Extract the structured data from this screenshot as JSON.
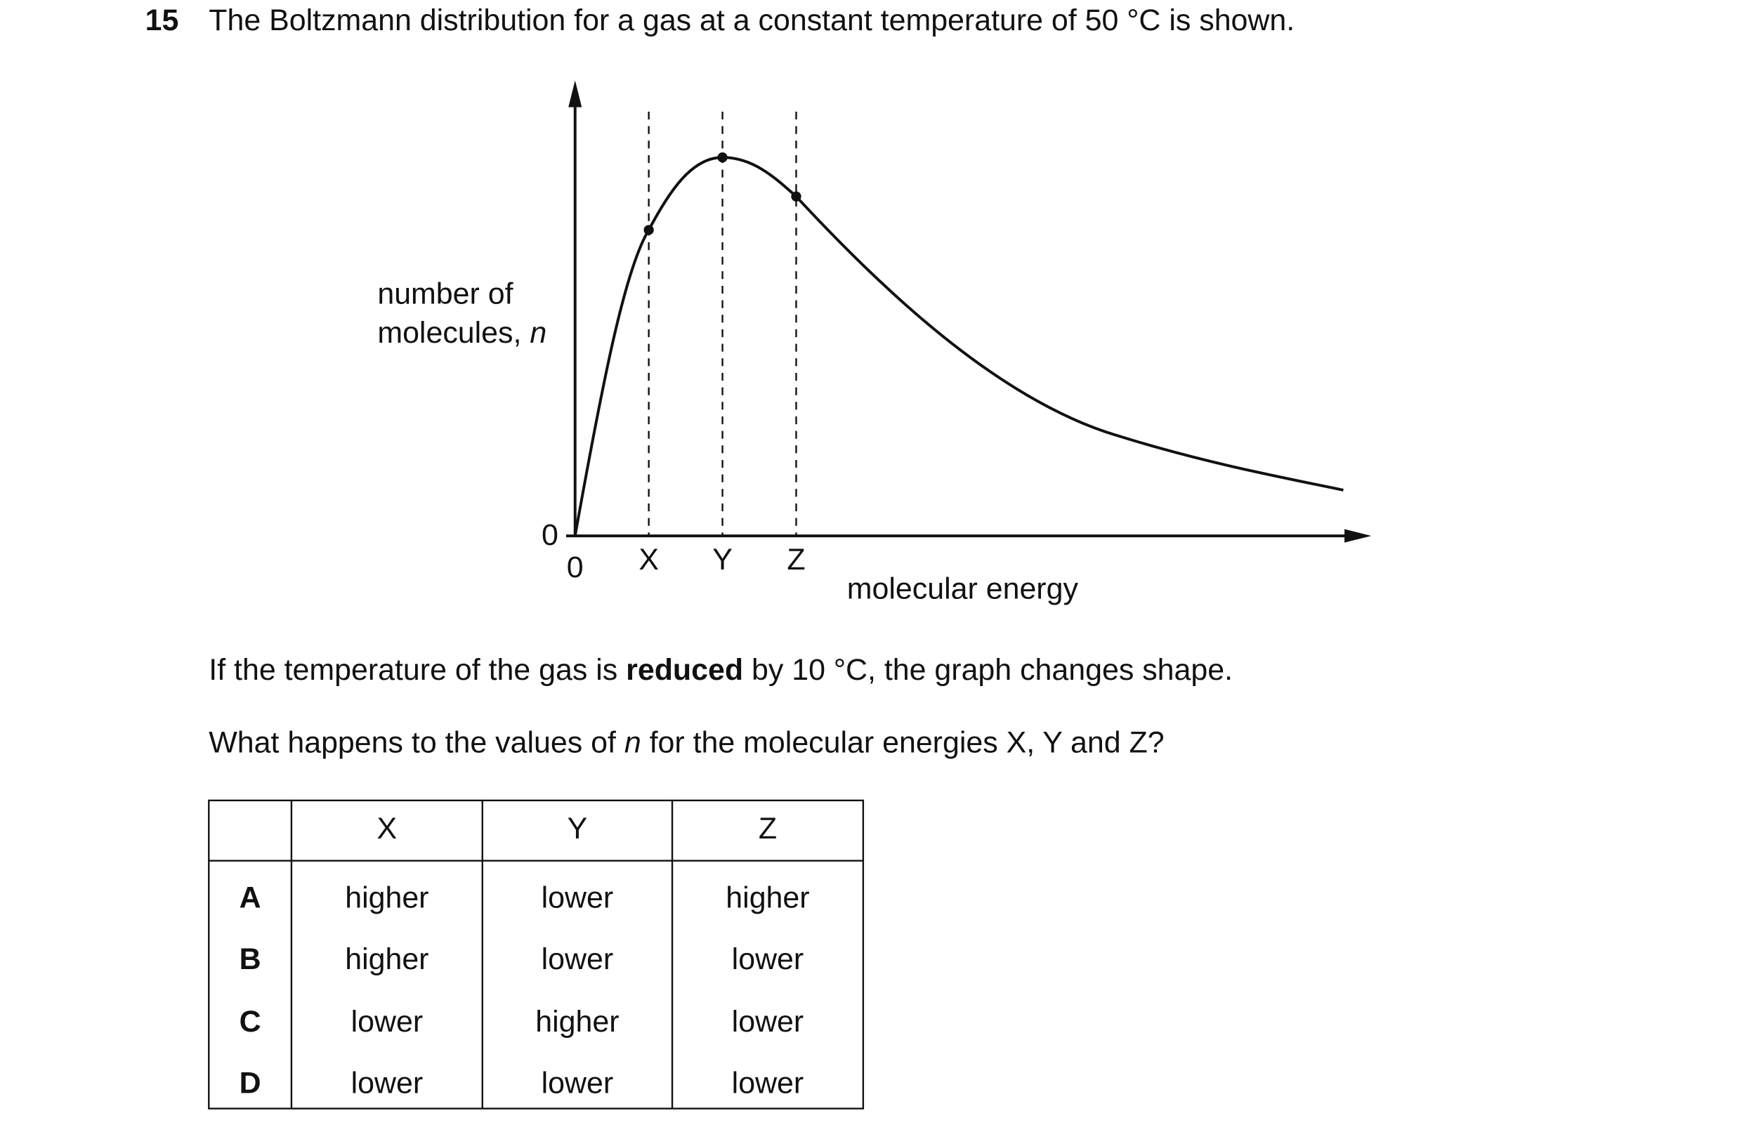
{
  "question": {
    "number": "15",
    "text": "The Boltzmann distribution for a gas at a constant temperature of 50 °C is shown."
  },
  "graph": {
    "y_label": [
      "number of",
      "molecules, ",
      "n"
    ],
    "y_origin": "0",
    "x_origin": "0",
    "x_markers": [
      "X",
      "Y",
      "Z"
    ],
    "x_label": "molecular energy"
  },
  "prompt": [
    [
      "If the temperature of the gas is ",
      "reduced",
      " by 10 °C, the graph changes shape."
    ],
    [
      "What happens to the values of ",
      "n",
      " for the molecular energies X, Y and Z?"
    ]
  ],
  "table": {
    "header": [
      "X",
      "Y",
      "Z"
    ],
    "rows": [
      [
        "A",
        "higher",
        "lower",
        "higher"
      ],
      [
        "B",
        "higher",
        "lower",
        "lower"
      ],
      [
        "C",
        "lower",
        "higher",
        "lower"
      ],
      [
        "D",
        "lower",
        "lower",
        "lower"
      ]
    ]
  }
}
